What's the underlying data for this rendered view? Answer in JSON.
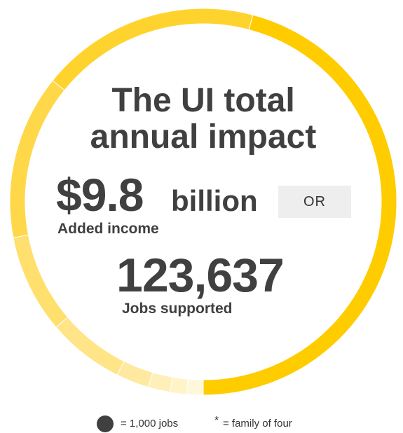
{
  "title": {
    "line1": "The UI total",
    "line2": "annual impact"
  },
  "income": {
    "value": "$9.8",
    "unit": "billion",
    "label": "Added income"
  },
  "separator": "OR",
  "jobs": {
    "value": "123,637",
    "label": "Jobs supported"
  },
  "legend": {
    "jobs_note": "= 1,000 jobs",
    "star": "*",
    "family_note": "= family of four"
  },
  "chart_data": {
    "type": "pie",
    "style": "donut",
    "center_text": "The UI total annual impact",
    "values": [
      50,
      20,
      15,
      9,
      7,
      3,
      2,
      1.5,
      1.5
    ],
    "colors": [
      "#FFCC00",
      "#FFD32E",
      "#FFD84A",
      "#FFDF6E",
      "#FFE488",
      "#FFE9A0",
      "#FFEFB8",
      "#FFF3C8",
      "#FFF7DC"
    ],
    "start": "bottom-center, clockwise",
    "legend": false,
    "grid": false
  }
}
